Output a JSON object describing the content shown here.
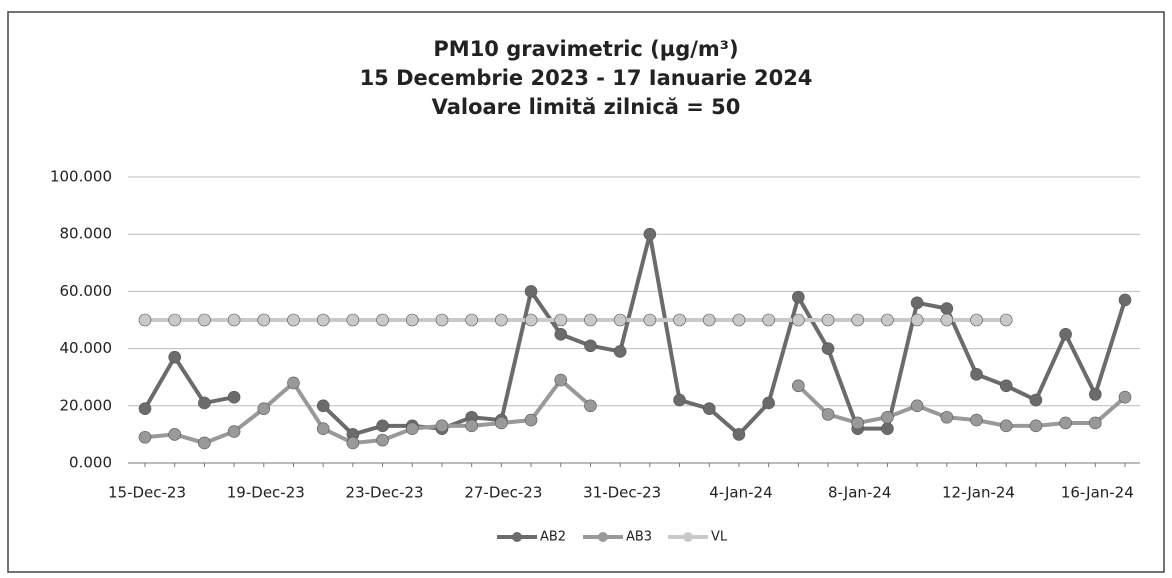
{
  "chart_data": {
    "type": "line",
    "title": [
      "PM10 gravimetric (µg/m³)",
      "15 Decembrie 2023 - 17 Ianuarie 2024",
      "Valoare limită zilnică  = 50"
    ],
    "categories": [
      "15-Dec-23",
      null,
      null,
      null,
      "19-Dec-23",
      null,
      null,
      null,
      "23-Dec-23",
      null,
      null,
      null,
      "27-Dec-23",
      null,
      null,
      null,
      "31-Dec-23",
      null,
      null,
      null,
      "4-Jan-24",
      null,
      null,
      null,
      "8-Jan-24",
      null,
      null,
      null,
      "12-Jan-24",
      null,
      null,
      null,
      "16-Jan-24",
      null
    ],
    "series": [
      {
        "name": "AB2",
        "color": "#6b6b6b",
        "values": [
          19,
          37,
          21,
          23,
          null,
          null,
          20,
          10,
          13,
          13,
          12,
          16,
          15,
          60,
          45,
          41,
          39,
          80,
          22,
          19,
          10,
          21,
          58,
          40,
          12,
          12,
          56,
          54,
          31,
          27,
          22,
          45,
          24,
          57
        ]
      },
      {
        "name": "AB3",
        "color": "#999999",
        "values": [
          9,
          10,
          7,
          11,
          19,
          28,
          12,
          7,
          8,
          12,
          13,
          13,
          14,
          15,
          29,
          20,
          null,
          null,
          null,
          null,
          null,
          null,
          27,
          17,
          14,
          16,
          20,
          16,
          15,
          13,
          13,
          14,
          14,
          23
        ]
      },
      {
        "name": "VL",
        "color": "#c9c9c9",
        "values": [
          50,
          50,
          50,
          50,
          50,
          50,
          50,
          50,
          50,
          50,
          50,
          50,
          50,
          50,
          50,
          50,
          50,
          50,
          50,
          50,
          50,
          50,
          50,
          50,
          50,
          50,
          50,
          50,
          50,
          50,
          null,
          null,
          null,
          null
        ]
      }
    ],
    "ylim": [
      0,
      100
    ],
    "yticks": [
      {
        "value": 0,
        "label": "0.000"
      },
      {
        "value": 20,
        "label": "20.000"
      },
      {
        "value": 40,
        "label": "40.000"
      },
      {
        "value": 60,
        "label": "60.000"
      },
      {
        "value": 80,
        "label": "80.000"
      },
      {
        "value": 100,
        "label": "100.000"
      }
    ],
    "grid": true,
    "legend": "bottom"
  }
}
